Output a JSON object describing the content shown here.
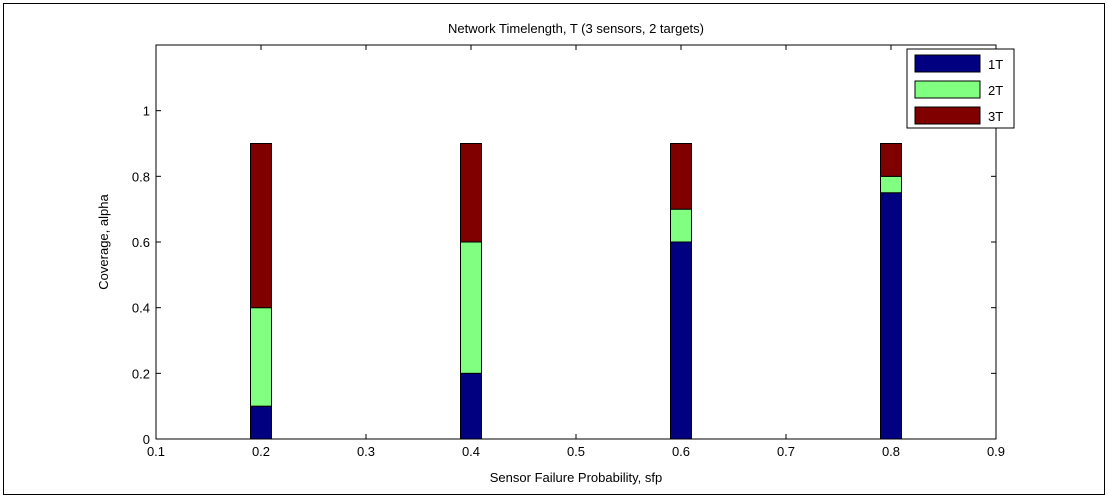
{
  "chart_data": {
    "type": "bar",
    "stacked": true,
    "title": "Network Timelength, T (3 sensors, 2 targets)",
    "xlabel": "Sensor Failure Probability, sfp",
    "ylabel": "Coverage, alpha",
    "xlim": [
      0.1,
      0.9
    ],
    "ylim": [
      0,
      1.2
    ],
    "xticks": [
      "0.1",
      "0.2",
      "0.3",
      "0.4",
      "0.5",
      "0.6",
      "0.7",
      "0.8",
      "0.9"
    ],
    "yticks": [
      "0",
      "0.2",
      "0.4",
      "0.6",
      "0.8",
      "1"
    ],
    "grid": false,
    "legend_position": "top-right",
    "x": [
      0.2,
      0.4,
      0.6,
      0.8
    ],
    "series": [
      {
        "name": "1T",
        "color": "#000080",
        "values": [
          0.1,
          0.2,
          0.6,
          0.75
        ]
      },
      {
        "name": "2T",
        "color": "#80ff80",
        "values": [
          0.3,
          0.4,
          0.1,
          0.05
        ]
      },
      {
        "name": "3T",
        "color": "#800000",
        "values": [
          0.5,
          0.3,
          0.2,
          0.1
        ]
      }
    ]
  }
}
